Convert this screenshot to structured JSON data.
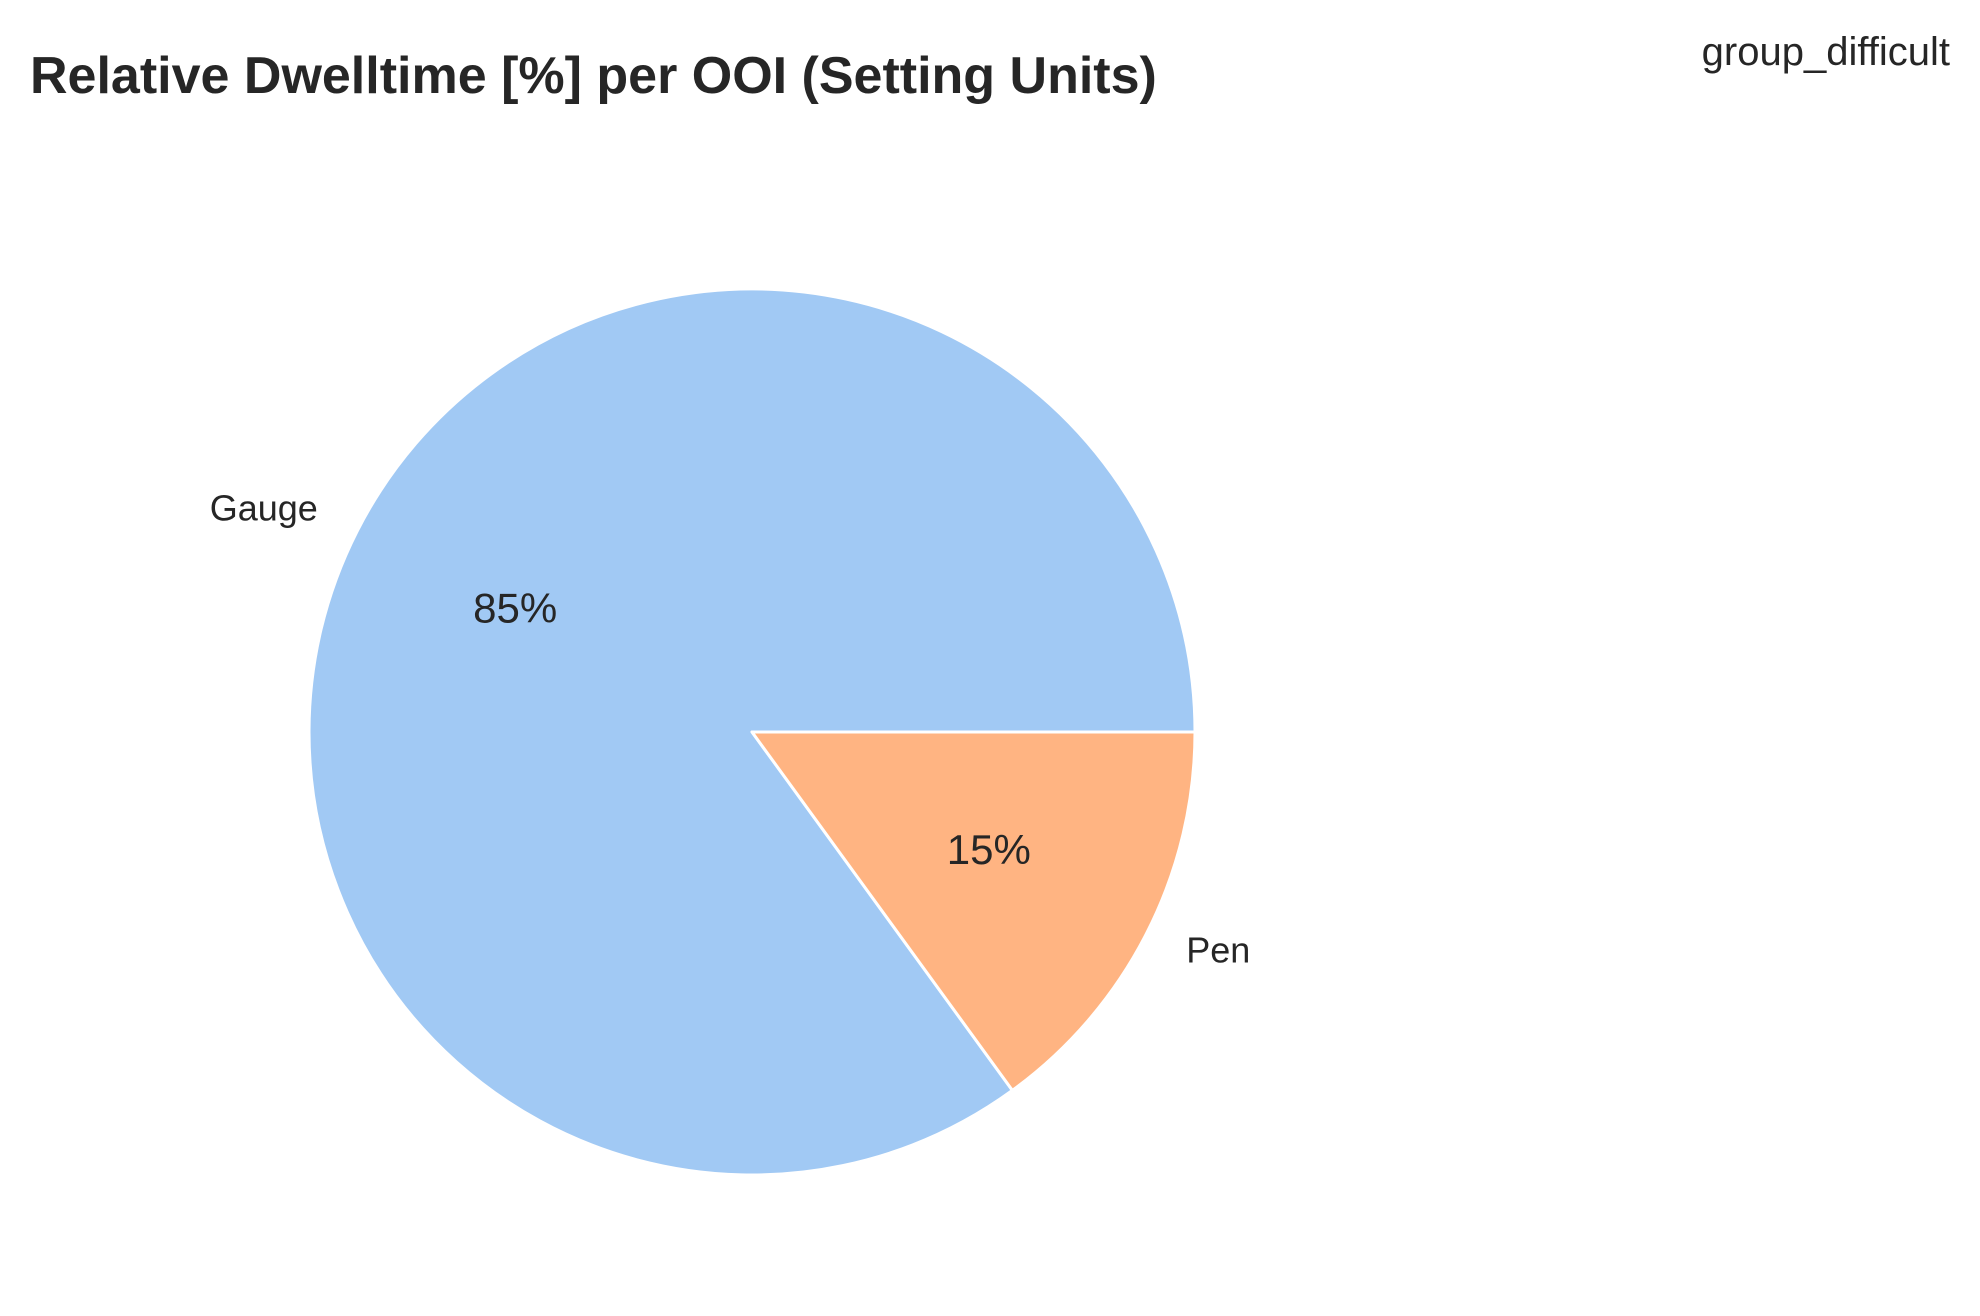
{
  "chart_data": {
    "type": "pie",
    "title": "Relative Dwelltime [%] per OOI (Setting Units)",
    "corner_label": "group_difficult",
    "slices": [
      {
        "label": "Gauge",
        "value": 85,
        "pct_label": "85%",
        "color": "#a1c9f4"
      },
      {
        "label": "Pen",
        "value": 15,
        "pct_label": "15%",
        "color": "#ffb482"
      }
    ],
    "start_angle_deg": 0,
    "direction": "counterclockwise",
    "edge_color": "#ffffff"
  }
}
